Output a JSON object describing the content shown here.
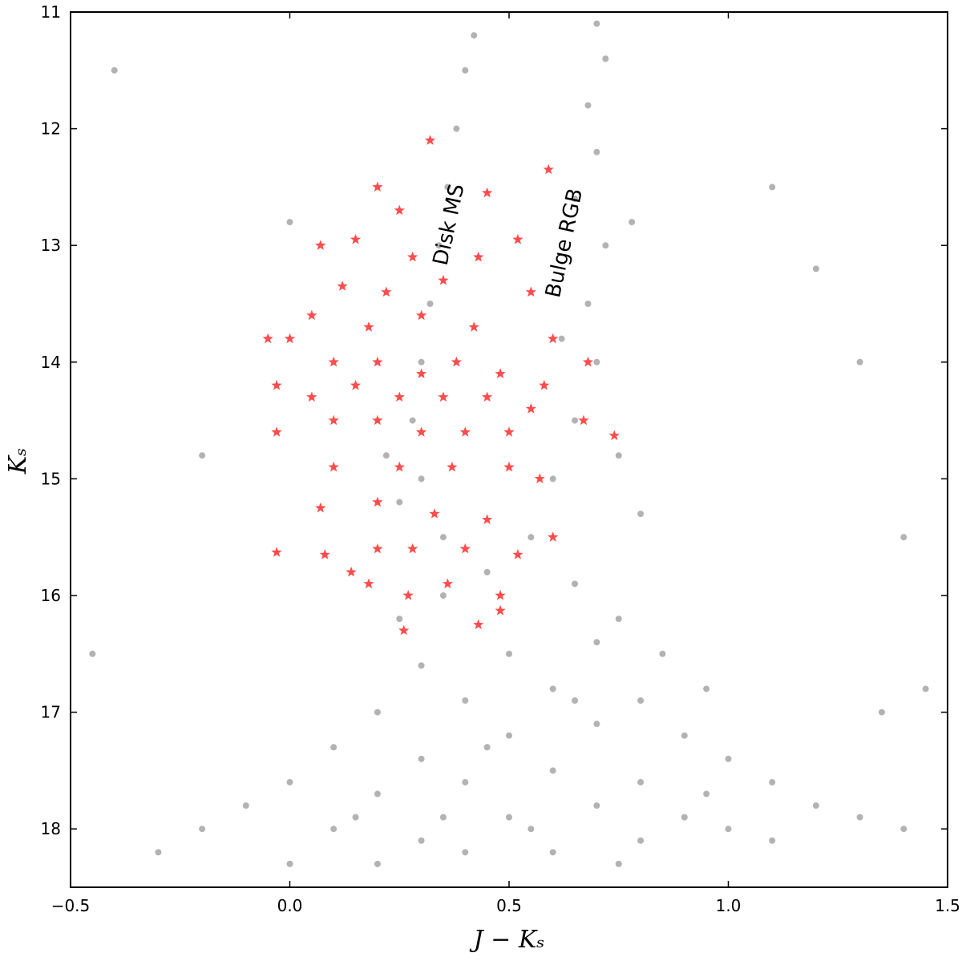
{
  "chart_data": {
    "type": "scatter",
    "x_label": "J − Kₛ",
    "y_label": "Kₛ",
    "annotations": [
      "Disk MS",
      "Bulge RGB"
    ],
    "xlim": [
      -0.5,
      1.5
    ],
    "ylim": [
      18.5,
      11
    ],
    "y_inverted": true,
    "xticks": [
      {
        "value": -0.5,
        "label": "−0.5"
      },
      {
        "value": 0,
        "label": "0.0"
      },
      0.5,
      {
        "value": 1,
        "label": "1.0"
      },
      1.5
    ],
    "yticks": [
      11,
      12,
      13,
      14,
      15,
      16,
      17,
      18
    ],
    "series": [
      {
        "color": "#808080",
        "marker": "dot",
        "x": [
          -0.3,
          -0.2,
          -0.1,
          0.0,
          0.0,
          0.1,
          0.1,
          0.2,
          0.2,
          0.2,
          0.3,
          0.3,
          0.3,
          0.4,
          0.4,
          0.4,
          0.5,
          0.5,
          0.5,
          0.6,
          0.6,
          0.6,
          0.7,
          0.7,
          0.7,
          0.8,
          0.8,
          0.8,
          0.9,
          0.9,
          1.0,
          1.0,
          1.1,
          1.1,
          1.2,
          1.3,
          1.4,
          0.15,
          0.35,
          0.55,
          0.75,
          0.95,
          0.45,
          0.65,
          0.25,
          0.35,
          0.45,
          0.55,
          0.65,
          0.75,
          0.85,
          0.95,
          0.6,
          0.65,
          0.7,
          0.68,
          0.72,
          0.65,
          0.7,
          0.68,
          0.72,
          0.7,
          0.75,
          0.8,
          0.62,
          0.78,
          0.35,
          0.3,
          0.28,
          0.3,
          0.32,
          0.34,
          0.36,
          0.38,
          0.4,
          0.42,
          0.25,
          0.22,
          -0.4,
          -0.45,
          1.3,
          1.4,
          1.45,
          1.1,
          0.0,
          -0.2,
          1.2,
          1.35
        ],
        "y": [
          18.2,
          18.0,
          17.8,
          17.6,
          18.3,
          17.3,
          18.0,
          17.0,
          17.7,
          18.3,
          16.6,
          17.4,
          18.1,
          16.9,
          17.6,
          18.2,
          16.5,
          17.2,
          17.9,
          16.8,
          17.5,
          18.2,
          16.4,
          17.1,
          17.8,
          16.9,
          17.6,
          18.1,
          17.2,
          17.9,
          17.4,
          18.0,
          17.6,
          18.1,
          17.8,
          17.9,
          18.0,
          17.9,
          17.9,
          18.0,
          18.3,
          17.7,
          17.3,
          16.9,
          16.2,
          16.0,
          15.8,
          15.5,
          15.9,
          16.2,
          16.5,
          16.8,
          15.0,
          14.5,
          14.0,
          13.5,
          13.0,
          12.6,
          12.2,
          11.8,
          11.4,
          11.1,
          14.8,
          15.3,
          13.8,
          12.8,
          15.5,
          15.0,
          14.5,
          14.0,
          13.5,
          13.0,
          12.5,
          12.0,
          11.5,
          11.2,
          15.2,
          14.8,
          11.5,
          16.5,
          14.0,
          15.5,
          16.8,
          12.5,
          12.8,
          14.8,
          13.2,
          17.0
        ]
      },
      {
        "color": "#ff0000",
        "marker": "star",
        "x": [
          0.32,
          0.59,
          0.2,
          0.45,
          0.25,
          0.07,
          0.15,
          0.28,
          0.43,
          0.52,
          0.12,
          0.22,
          0.35,
          0.55,
          0.05,
          0.18,
          0.3,
          0.42,
          0.6,
          -0.05,
          0.0,
          0.1,
          0.2,
          0.3,
          0.38,
          0.48,
          0.58,
          0.68,
          0.05,
          0.15,
          0.25,
          0.35,
          0.45,
          0.55,
          0.67,
          0.74,
          -0.03,
          0.1,
          0.2,
          0.3,
          0.4,
          0.5,
          -0.03,
          0.1,
          0.25,
          0.37,
          0.5,
          0.57,
          0.07,
          0.2,
          0.33,
          0.45,
          0.6,
          -0.03,
          0.08,
          0.2,
          0.28,
          0.4,
          0.52,
          0.14,
          0.18,
          0.36,
          0.48,
          0.27,
          0.43,
          0.26,
          0.48
        ],
        "y": [
          12.1,
          12.35,
          12.5,
          12.55,
          12.7,
          13.0,
          12.95,
          13.1,
          13.1,
          12.95,
          13.35,
          13.4,
          13.3,
          13.4,
          13.6,
          13.7,
          13.6,
          13.7,
          13.8,
          13.8,
          13.8,
          14.0,
          14.0,
          14.1,
          14.0,
          14.1,
          14.2,
          14.0,
          14.3,
          14.2,
          14.3,
          14.3,
          14.3,
          14.4,
          14.5,
          14.63,
          14.2,
          14.5,
          14.5,
          14.6,
          14.6,
          14.6,
          14.6,
          14.9,
          14.9,
          14.9,
          14.9,
          15.0,
          15.25,
          15.2,
          15.3,
          15.35,
          15.5,
          15.63,
          15.65,
          15.6,
          15.6,
          15.6,
          15.65,
          15.8,
          15.9,
          15.9,
          16.0,
          16.0,
          16.25,
          16.3,
          16.13
        ]
      }
    ]
  }
}
